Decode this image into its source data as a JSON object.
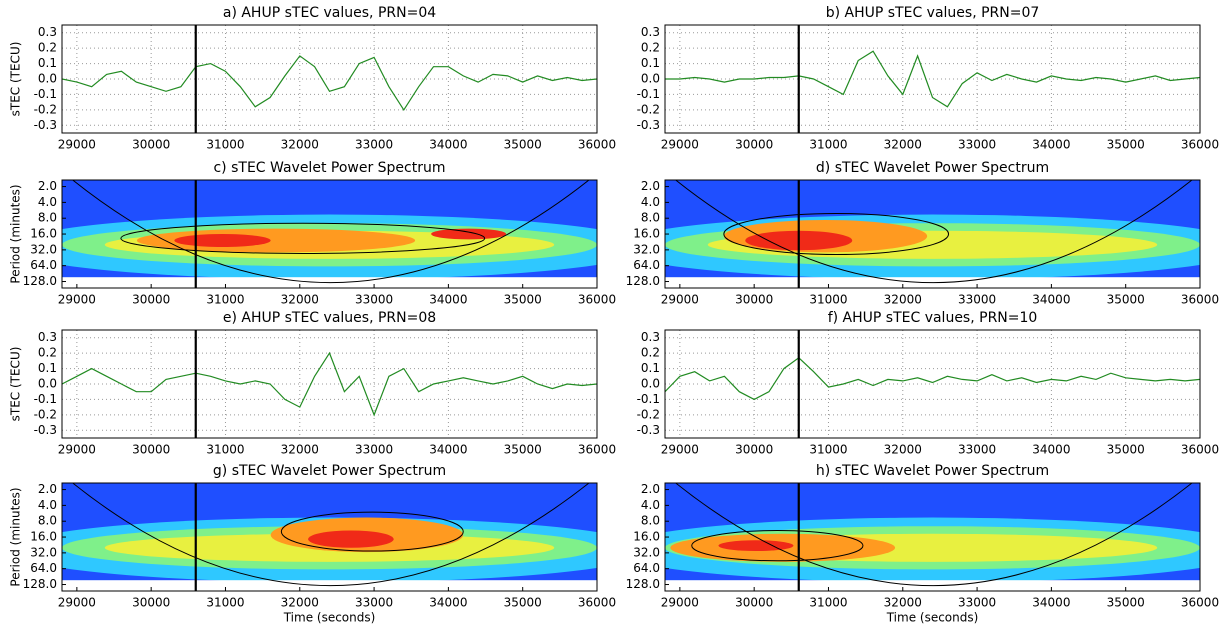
{
  "chart_data": [
    {
      "type": "line",
      "title": "a) AHUP sTEC values, PRN=04",
      "ylabel": "sTEC (TECU)",
      "color": "#228b22",
      "grid": true,
      "marker_x": 30600,
      "x": [
        28800,
        29000,
        29200,
        29400,
        29600,
        29800,
        30000,
        30200,
        30400,
        30600,
        30800,
        31000,
        31200,
        31400,
        31600,
        31800,
        32000,
        32200,
        32400,
        32600,
        32800,
        33000,
        33200,
        33400,
        33600,
        33800,
        34000,
        34200,
        34400,
        34600,
        34800,
        35000,
        35200,
        35400,
        35600,
        35800,
        36000
      ],
      "values": [
        0.0,
        -0.02,
        -0.05,
        0.03,
        0.05,
        -0.02,
        -0.05,
        -0.08,
        -0.05,
        0.08,
        0.1,
        0.05,
        -0.05,
        -0.18,
        -0.12,
        0.02,
        0.15,
        0.08,
        -0.08,
        -0.05,
        0.1,
        0.14,
        -0.05,
        -0.2,
        -0.05,
        0.08,
        0.08,
        0.02,
        -0.02,
        0.03,
        0.02,
        -0.02,
        0.02,
        -0.01,
        0.01,
        -0.01,
        0.0
      ],
      "xlim": [
        28800,
        36000
      ],
      "xticks": [
        29000,
        30000,
        31000,
        32000,
        33000,
        34000,
        35000,
        36000
      ],
      "ylim": [
        -0.35,
        0.35
      ],
      "yticks": [
        -0.3,
        -0.2,
        -0.1,
        {
          "value": 0,
          "label": "0.0"
        },
        0.1,
        0.2,
        0.3
      ]
    },
    {
      "type": "line",
      "title": "b) AHUP sTEC values, PRN=07",
      "color": "#228b22",
      "grid": true,
      "marker_x": 30600,
      "x": [
        28800,
        29000,
        29200,
        29400,
        29600,
        29800,
        30000,
        30200,
        30400,
        30600,
        30800,
        31000,
        31200,
        31400,
        31600,
        31800,
        32000,
        32200,
        32400,
        32600,
        32800,
        33000,
        33200,
        33400,
        33600,
        33800,
        34000,
        34200,
        34400,
        34600,
        34800,
        35000,
        35200,
        35400,
        35600,
        35800,
        36000
      ],
      "values": [
        0.0,
        0.0,
        0.01,
        0.0,
        -0.02,
        0.0,
        0.0,
        0.01,
        0.01,
        0.02,
        0.0,
        -0.05,
        -0.1,
        0.12,
        0.18,
        0.02,
        -0.1,
        0.15,
        -0.12,
        -0.18,
        -0.03,
        0.04,
        -0.01,
        0.03,
        0.0,
        -0.02,
        0.02,
        0.0,
        -0.01,
        0.01,
        0.0,
        -0.02,
        0.0,
        0.02,
        -0.01,
        0.0,
        0.01
      ],
      "xlim": [
        28800,
        36000
      ],
      "xticks": [
        29000,
        30000,
        31000,
        32000,
        33000,
        34000,
        35000,
        36000
      ],
      "ylim": [
        -0.35,
        0.35
      ],
      "yticks": [
        -0.3,
        -0.2,
        -0.1,
        {
          "value": 0,
          "label": "0.0"
        },
        0.1,
        0.2,
        0.3
      ]
    },
    {
      "type": "wavelet",
      "title": "c) sTEC Wavelet Power Spectrum",
      "ylabel": "Period (minutes)",
      "marker_x": 30600,
      "log_scale": true,
      "y_inverted": true,
      "xlim": [
        28800,
        36000
      ],
      "xticks": [
        29000,
        30000,
        31000,
        32000,
        33000,
        34000,
        35000,
        36000
      ],
      "ylim": [
        1.5,
        170
      ],
      "yticks": [
        {
          "value": 2,
          "label": "2.0"
        },
        {
          "value": 4,
          "label": "4.0"
        },
        {
          "value": 8,
          "label": "8.0"
        },
        {
          "value": 16,
          "label": "16.0"
        },
        {
          "value": 32,
          "label": "32.0"
        },
        {
          "value": 64,
          "label": "64.0"
        },
        {
          "value": 128,
          "label": "128.0"
        }
      ]
    },
    {
      "type": "wavelet",
      "title": "d) sTEC Wavelet Power Spectrum",
      "marker_x": 30600,
      "log_scale": true,
      "y_inverted": true,
      "xlim": [
        28800,
        36000
      ],
      "xticks": [
        29000,
        30000,
        31000,
        32000,
        33000,
        34000,
        35000,
        36000
      ],
      "ylim": [
        1.5,
        170
      ],
      "yticks": [
        {
          "value": 2,
          "label": "2.0"
        },
        {
          "value": 4,
          "label": "4.0"
        },
        {
          "value": 8,
          "label": "8.0"
        },
        {
          "value": 16,
          "label": "16.0"
        },
        {
          "value": 32,
          "label": "32.0"
        },
        {
          "value": 64,
          "label": "64.0"
        },
        {
          "value": 128,
          "label": "128.0"
        }
      ]
    },
    {
      "type": "line",
      "title": "e) AHUP sTEC values, PRN=08",
      "ylabel": "sTEC (TECU)",
      "color": "#228b22",
      "grid": true,
      "marker_x": 30600,
      "x": [
        28800,
        29000,
        29200,
        29400,
        29600,
        29800,
        30000,
        30200,
        30400,
        30600,
        30800,
        31000,
        31200,
        31400,
        31600,
        31800,
        32000,
        32200,
        32400,
        32600,
        32800,
        33000,
        33200,
        33400,
        33600,
        33800,
        34000,
        34200,
        34400,
        34600,
        34800,
        35000,
        35200,
        35400,
        35600,
        35800,
        36000
      ],
      "values": [
        0.0,
        0.05,
        0.1,
        0.05,
        0.0,
        -0.05,
        -0.05,
        0.03,
        0.05,
        0.07,
        0.05,
        0.02,
        0.0,
        0.02,
        0.0,
        -0.1,
        -0.15,
        0.05,
        0.2,
        -0.05,
        0.05,
        -0.2,
        0.05,
        0.1,
        -0.05,
        0.0,
        0.02,
        0.04,
        0.02,
        0.0,
        0.02,
        0.05,
        0.0,
        -0.03,
        0.0,
        -0.01,
        0.0
      ],
      "xlim": [
        28800,
        36000
      ],
      "xticks": [
        29000,
        30000,
        31000,
        32000,
        33000,
        34000,
        35000,
        36000
      ],
      "ylim": [
        -0.35,
        0.35
      ],
      "yticks": [
        -0.3,
        -0.2,
        -0.1,
        {
          "value": 0,
          "label": "0.0"
        },
        0.1,
        0.2,
        0.3
      ]
    },
    {
      "type": "line",
      "title": "f) AHUP sTEC values, PRN=10",
      "color": "#228b22",
      "grid": true,
      "marker_x": 30600,
      "x": [
        28800,
        29000,
        29200,
        29400,
        29600,
        29800,
        30000,
        30200,
        30400,
        30600,
        30800,
        31000,
        31200,
        31400,
        31600,
        31800,
        32000,
        32200,
        32400,
        32600,
        32800,
        33000,
        33200,
        33400,
        33600,
        33800,
        34000,
        34200,
        34400,
        34600,
        34800,
        35000,
        35200,
        35400,
        35600,
        35800,
        36000
      ],
      "values": [
        -0.05,
        0.05,
        0.08,
        0.02,
        0.05,
        -0.05,
        -0.1,
        -0.05,
        0.1,
        0.17,
        0.08,
        -0.02,
        0.0,
        0.03,
        -0.01,
        0.03,
        0.02,
        0.04,
        0.01,
        0.05,
        0.03,
        0.02,
        0.06,
        0.02,
        0.04,
        0.01,
        0.03,
        0.02,
        0.05,
        0.03,
        0.07,
        0.04,
        0.03,
        0.02,
        0.03,
        0.02,
        0.03
      ],
      "xlim": [
        28800,
        36000
      ],
      "xticks": [
        29000,
        30000,
        31000,
        32000,
        33000,
        34000,
        35000,
        36000
      ],
      "ylim": [
        -0.35,
        0.35
      ],
      "yticks": [
        -0.3,
        -0.2,
        -0.1,
        {
          "value": 0,
          "label": "0.0"
        },
        0.1,
        0.2,
        0.3
      ]
    },
    {
      "type": "wavelet",
      "title": "g) sTEC Wavelet Power Spectrum",
      "ylabel": "Period (minutes)",
      "xlabel": "Time (seconds)",
      "marker_x": 30600,
      "log_scale": true,
      "y_inverted": true,
      "xlim": [
        28800,
        36000
      ],
      "xticks": [
        29000,
        30000,
        31000,
        32000,
        33000,
        34000,
        35000,
        36000
      ],
      "ylim": [
        1.5,
        170
      ],
      "yticks": [
        {
          "value": 2,
          "label": "2.0"
        },
        {
          "value": 4,
          "label": "4.0"
        },
        {
          "value": 8,
          "label": "8.0"
        },
        {
          "value": 16,
          "label": "16.0"
        },
        {
          "value": 32,
          "label": "32.0"
        },
        {
          "value": 64,
          "label": "64.0"
        },
        {
          "value": 128,
          "label": "128.0"
        }
      ]
    },
    {
      "type": "wavelet",
      "title": "h) sTEC Wavelet Power Spectrum",
      "xlabel": "Time (seconds)",
      "marker_x": 30600,
      "log_scale": true,
      "y_inverted": true,
      "xlim": [
        28800,
        36000
      ],
      "xticks": [
        29000,
        30000,
        31000,
        32000,
        33000,
        34000,
        35000,
        36000
      ],
      "ylim": [
        1.5,
        170
      ],
      "yticks": [
        {
          "value": 2,
          "label": "2.0"
        },
        {
          "value": 4,
          "label": "4.0"
        },
        {
          "value": 8,
          "label": "8.0"
        },
        {
          "value": 16,
          "label": "16.0"
        },
        {
          "value": 32,
          "label": "32.0"
        },
        {
          "value": 64,
          "label": "64.0"
        },
        {
          "value": 128,
          "label": "128.0"
        }
      ]
    }
  ]
}
